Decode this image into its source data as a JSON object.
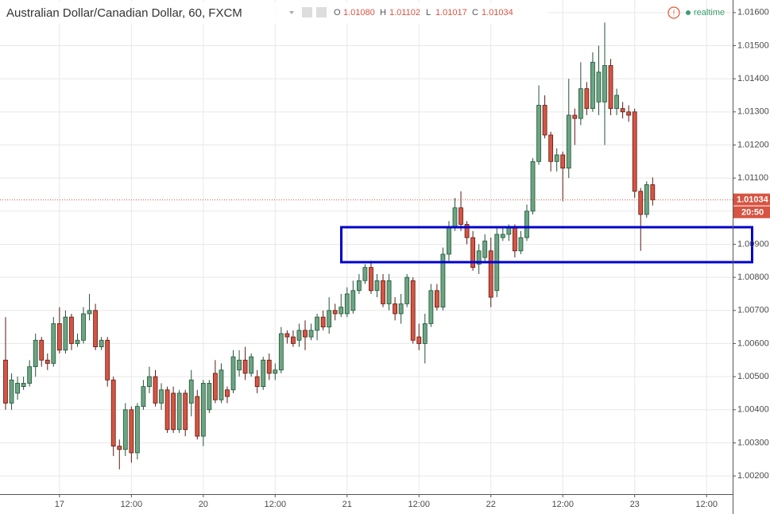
{
  "header": {
    "title": "Australian Dollar/Canadian Dollar, 60, FXCM",
    "ohlc": [
      {
        "key": "O",
        "value": "1.01080"
      },
      {
        "key": "H",
        "value": "1.01102"
      },
      {
        "key": "L",
        "value": "1.01017"
      },
      {
        "key": "C",
        "value": "1.01034"
      }
    ],
    "status": "realtime"
  },
  "chart_data": {
    "type": "candlestick",
    "categories": [
      null,
      null,
      null,
      null,
      null,
      null,
      null,
      null,
      null,
      "17",
      null,
      null,
      null,
      null,
      null,
      null,
      null,
      null,
      null,
      null,
      null,
      "12:00",
      null,
      null,
      null,
      null,
      null,
      null,
      null,
      null,
      null,
      null,
      null,
      "20",
      null,
      null,
      null,
      null,
      null,
      null,
      null,
      null,
      null,
      null,
      null,
      "12:00",
      null,
      null,
      null,
      null,
      null,
      null,
      null,
      null,
      null,
      null,
      null,
      "21",
      null,
      null,
      null,
      null,
      null,
      null,
      null,
      null,
      null,
      null,
      null,
      "12:00",
      null,
      null,
      null,
      null,
      null,
      null,
      null,
      null,
      null,
      null,
      null,
      "22",
      null,
      null,
      null,
      null,
      null,
      null,
      null,
      null,
      null,
      null,
      null,
      "12:00",
      null,
      null,
      null,
      null,
      null,
      null,
      null,
      null,
      null,
      null,
      null,
      "23",
      null,
      null,
      null,
      null,
      null,
      null,
      null,
      null,
      null,
      null,
      null,
      "12:00"
    ],
    "open": [
      1.0055,
      1.0042,
      1.0045,
      1.0047,
      1.0048,
      1.0053,
      1.0061,
      1.0055,
      1.0054,
      1.0066,
      1.0058,
      1.0068,
      1.006,
      1.0061,
      1.0069,
      1.007,
      1.0059,
      1.0061,
      1.0049,
      1.0029,
      1.0028,
      1.004,
      1.0027,
      1.0041,
      1.0047,
      1.005,
      1.0042,
      1.0046,
      1.0045,
      1.0034,
      1.0045,
      1.0042,
      1.0044,
      1.0032,
      1.004,
      1.0051,
      1.0043,
      1.0046,
      1.0046,
      1.0052,
      1.0055,
      1.0051,
      1.005,
      1.0047,
      1.0055,
      1.0051,
      1.0052,
      1.0063,
      1.0062,
      1.0061,
      1.0064,
      1.0062,
      1.0064,
      1.0068,
      1.0065,
      1.007,
      1.0069,
      1.0069,
      1.007,
      1.0076,
      1.0079,
      1.0083,
      1.0076,
      1.0079,
      1.0072,
      1.0072,
      1.0069,
      1.0072,
      1.0079,
      1.0062,
      1.006,
      1.0066,
      1.0076,
      1.0071,
      1.0087,
      1.0095,
      1.0101,
      1.0096,
      1.0092,
      1.0084,
      1.0086,
      1.0088,
      1.0076,
      1.0092,
      1.0093,
      1.0095,
      1.0088,
      1.0092,
      1.01,
      1.0115,
      1.0132,
      1.0123,
      1.0115,
      1.0117,
      1.0113,
      1.0129,
      1.0128,
      1.0137,
      1.0131,
      1.0133,
      1.0133,
      1.0144,
      1.0131,
      1.0131,
      1.013,
      1.013,
      1.0106,
      1.0099,
      1.0108,
      null,
      null,
      null,
      null,
      null,
      null,
      null,
      null,
      null
    ],
    "high": [
      1.0068,
      1.0051,
      1.005,
      1.005,
      1.0055,
      1.0063,
      1.0062,
      1.0057,
      1.0068,
      1.0071,
      1.007,
      1.0069,
      1.0063,
      1.0071,
      1.0075,
      1.0072,
      1.0062,
      1.0062,
      1.005,
      1.0031,
      1.0042,
      1.0041,
      1.0042,
      1.0049,
      1.0053,
      1.0052,
      1.0048,
      1.0047,
      1.0047,
      1.0046,
      1.0046,
      1.0052,
      1.0046,
      1.0049,
      1.0049,
      1.0055,
      1.0054,
      1.0047,
      1.0058,
      1.0058,
      1.0059,
      1.0057,
      1.0052,
      1.0056,
      1.0057,
      1.0054,
      1.0065,
      1.0064,
      1.0064,
      1.0066,
      1.0067,
      1.0066,
      1.0069,
      1.007,
      1.0074,
      1.0072,
      1.0075,
      1.0077,
      1.0079,
      1.0081,
      1.0084,
      1.0085,
      1.0081,
      1.0081,
      1.0081,
      1.0074,
      1.0075,
      1.0081,
      1.008,
      1.0066,
      1.0069,
      1.0078,
      1.0078,
      1.0089,
      1.0097,
      1.0104,
      1.0106,
      1.0097,
      1.0094,
      1.009,
      1.0093,
      1.0092,
      1.0095,
      1.0095,
      1.0096,
      1.0096,
      1.0094,
      1.0102,
      1.0116,
      1.0138,
      1.0135,
      1.0124,
      1.0119,
      1.0118,
      1.014,
      1.0131,
      1.0145,
      1.0139,
      1.0148,
      1.015,
      1.0157,
      1.0146,
      1.0137,
      1.0133,
      1.0132,
      1.0131,
      1.0107,
      1.0109,
      1.01102,
      null,
      null,
      null,
      null,
      null,
      null,
      null,
      null,
      null
    ],
    "low": [
      1.004,
      1.004,
      1.0043,
      1.0046,
      1.0047,
      1.005,
      1.0053,
      1.0052,
      1.0053,
      1.0057,
      1.0057,
      1.0058,
      1.0059,
      1.006,
      1.0067,
      1.0058,
      1.0058,
      1.0047,
      1.0026,
      1.0022,
      1.0026,
      1.0024,
      1.0025,
      1.004,
      1.0045,
      1.0041,
      1.004,
      1.0033,
      1.0033,
      1.0033,
      1.0032,
      1.0038,
      1.0031,
      1.0029,
      1.0039,
      1.0042,
      1.0042,
      1.0042,
      1.0045,
      1.005,
      1.0049,
      1.005,
      1.0045,
      1.0046,
      1.0049,
      1.0049,
      1.0051,
      1.006,
      1.0059,
      1.0059,
      1.0058,
      1.0061,
      1.0061,
      1.0064,
      1.0063,
      1.0067,
      1.0068,
      1.0068,
      1.0069,
      1.0075,
      1.0078,
      1.0075,
      1.0074,
      1.0071,
      1.007,
      1.0067,
      1.0066,
      1.0071,
      1.006,
      1.0058,
      1.0054,
      1.0065,
      1.007,
      1.007,
      1.0085,
      1.0094,
      1.0094,
      1.009,
      1.0082,
      1.0081,
      1.0085,
      1.0071,
      1.0074,
      1.0091,
      1.0091,
      1.0086,
      1.0087,
      1.0091,
      1.0099,
      1.0114,
      1.0122,
      1.0112,
      1.0112,
      1.0103,
      1.011,
      1.012,
      1.0126,
      1.0129,
      1.013,
      1.0129,
      1.012,
      1.0129,
      1.0129,
      1.0128,
      1.0127,
      1.0104,
      1.0088,
      1.0098,
      1.01017,
      null,
      null,
      null,
      null,
      null,
      null,
      null,
      null,
      null
    ],
    "close": [
      1.0042,
      1.0049,
      1.0048,
      1.0048,
      1.0053,
      1.0061,
      1.0055,
      1.0054,
      1.0066,
      1.0058,
      1.0068,
      1.006,
      1.0061,
      1.0069,
      1.007,
      1.0059,
      1.0061,
      1.0049,
      1.0029,
      1.0028,
      1.004,
      1.0027,
      1.0041,
      1.0047,
      1.005,
      1.0042,
      1.0046,
      1.0034,
      1.0034,
      1.0045,
      1.0034,
      1.0049,
      1.0032,
      1.0048,
      1.0048,
      1.0043,
      1.0052,
      1.0044,
      1.0056,
      1.0055,
      1.0051,
      1.0056,
      1.0047,
      1.0055,
      1.0051,
      1.0052,
      1.0063,
      1.0062,
      1.006,
      1.0064,
      1.0062,
      1.0064,
      1.0068,
      1.0065,
      1.007,
      1.0069,
      1.0071,
      1.0075,
      1.0076,
      1.0079,
      1.0083,
      1.0076,
      1.0079,
      1.0072,
      1.0079,
      1.0069,
      1.0072,
      1.008,
      1.0061,
      1.006,
      1.0066,
      1.0076,
      1.0071,
      1.0087,
      1.0095,
      1.0101,
      1.0096,
      1.0092,
      1.0083,
      1.0088,
      1.0091,
      1.0074,
      1.0093,
      1.0093,
      1.0095,
      1.0088,
      1.0092,
      1.01,
      1.0115,
      1.0132,
      1.0123,
      1.0115,
      1.0117,
      1.0113,
      1.0129,
      1.0128,
      1.0137,
      1.0131,
      1.0145,
      1.0142,
      1.0144,
      1.0131,
      1.0135,
      1.013,
      1.0129,
      1.0106,
      1.0099,
      1.0108,
      1.01034,
      null,
      null,
      null,
      null,
      null,
      null,
      null,
      null,
      null
    ],
    "up_color": "#6ba583",
    "down_color": "#d75442",
    "ylim": [
      1.00145,
      1.01638
    ],
    "yticks": [
      {
        "value": 1.002,
        "label": "1.00200"
      },
      {
        "value": 1.003,
        "label": "1.00300"
      },
      {
        "value": 1.004,
        "label": "1.00400"
      },
      {
        "value": 1.005,
        "label": "1.00500"
      },
      {
        "value": 1.006,
        "label": "1.00600"
      },
      {
        "value": 1.007,
        "label": "1.00700"
      },
      {
        "value": 1.008,
        "label": "1.00800"
      },
      {
        "value": 1.009,
        "label": "1.00900"
      },
      {
        "value": 1.01,
        "label": "1.01000"
      },
      {
        "value": 1.011,
        "label": "1.01100"
      },
      {
        "value": 1.012,
        "label": "1.01200"
      },
      {
        "value": 1.013,
        "label": "1.01300"
      },
      {
        "value": 1.014,
        "label": "1.01400"
      },
      {
        "value": 1.015,
        "label": "1.01500"
      },
      {
        "value": 1.016,
        "label": "1.01600"
      }
    ],
    "grid": true,
    "price_line": {
      "value": 1.01034,
      "label": "1.01034",
      "countdown": "20:50",
      "color": "#d75442"
    }
  }
}
